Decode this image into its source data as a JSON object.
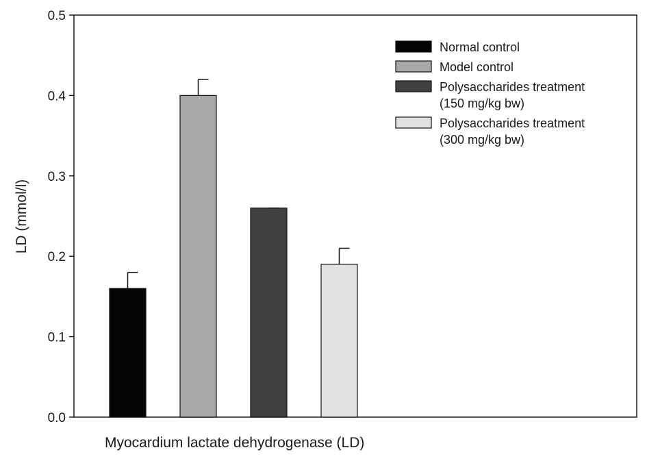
{
  "chart_data": {
    "type": "bar",
    "title": "",
    "xlabel": "Myocardium  lactate dehydrogenase (LD)",
    "ylabel": "LD (mmol/l)",
    "ylim": [
      0,
      0.5
    ],
    "yticks": [
      "0.0",
      "0.1",
      "0.2",
      "0.3",
      "0.4",
      "0.5"
    ],
    "grid": false,
    "legend_position": "top-right",
    "series": [
      {
        "name": "Normal control",
        "legend_lines": [
          "Normal control"
        ],
        "value": 0.16,
        "error": 0.02,
        "color": "#050505"
      },
      {
        "name": "Model control",
        "legend_lines": [
          "Model control"
        ],
        "value": 0.4,
        "error": 0.02,
        "color": "#a9a9a9"
      },
      {
        "name": "Polysaccharides treatment (150 mg/kg bw)",
        "legend_lines": [
          "Polysaccharides treatment",
          "(150 mg/kg bw)"
        ],
        "value": 0.26,
        "error": 0.0,
        "color": "#404040"
      },
      {
        "name": "Polysaccharides treatment (300 mg/kg bw)",
        "legend_lines": [
          "Polysaccharides treatment",
          "(300 mg/kg bw)"
        ],
        "value": 0.19,
        "error": 0.02,
        "color": "#e2e2e2"
      }
    ]
  }
}
